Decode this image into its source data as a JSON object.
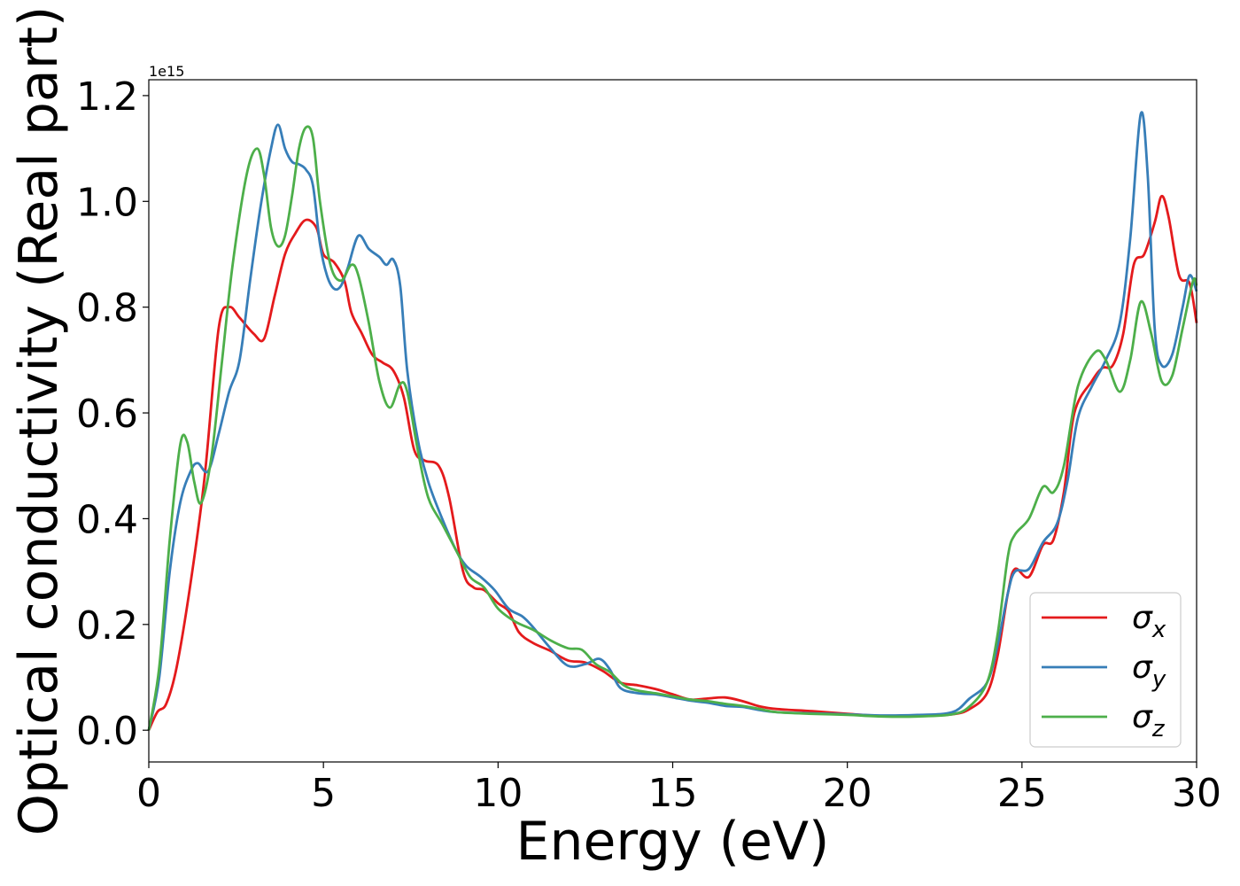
{
  "chart_data": {
    "type": "line",
    "xlabel": "Energy (eV)",
    "ylabel": "Optical conductivity (Real part)",
    "y_offset_text": "1e15",
    "xlim": [
      0,
      30
    ],
    "ylim": [
      -0.06,
      1.23
    ],
    "x_ticks": [
      0,
      5,
      10,
      15,
      20,
      25,
      30
    ],
    "x_tick_labels": [
      "0",
      "5",
      "10",
      "15",
      "20",
      "25",
      "30"
    ],
    "y_ticks": [
      0.0,
      0.2,
      0.4,
      0.6,
      0.8,
      1.0,
      1.2
    ],
    "y_tick_labels": [
      "0.0",
      "0.2",
      "0.4",
      "0.6",
      "0.8",
      "1.0",
      "1.2"
    ],
    "grid": false,
    "legend_position": "bottom-right",
    "series": [
      {
        "name": "σx",
        "base": "σ",
        "sub": "x",
        "color": "#e41a1c",
        "points": [
          [
            0,
            0
          ],
          [
            0.25,
            0.035
          ],
          [
            0.5,
            0.05
          ],
          [
            0.8,
            0.12
          ],
          [
            1.2,
            0.28
          ],
          [
            1.6,
            0.48
          ],
          [
            2.0,
            0.76
          ],
          [
            2.3,
            0.8
          ],
          [
            2.6,
            0.78
          ],
          [
            3.0,
            0.75
          ],
          [
            3.3,
            0.74
          ],
          [
            3.6,
            0.82
          ],
          [
            3.9,
            0.9
          ],
          [
            4.2,
            0.94
          ],
          [
            4.5,
            0.965
          ],
          [
            4.8,
            0.95
          ],
          [
            5.0,
            0.9
          ],
          [
            5.3,
            0.885
          ],
          [
            5.6,
            0.85
          ],
          [
            5.8,
            0.79
          ],
          [
            6.1,
            0.75
          ],
          [
            6.4,
            0.71
          ],
          [
            6.7,
            0.695
          ],
          [
            7.0,
            0.68
          ],
          [
            7.3,
            0.63
          ],
          [
            7.6,
            0.53
          ],
          [
            7.9,
            0.51
          ],
          [
            8.3,
            0.5
          ],
          [
            8.6,
            0.44
          ],
          [
            9.0,
            0.3
          ],
          [
            9.3,
            0.27
          ],
          [
            9.6,
            0.265
          ],
          [
            10.0,
            0.24
          ],
          [
            10.3,
            0.225
          ],
          [
            10.6,
            0.185
          ],
          [
            11.0,
            0.165
          ],
          [
            11.5,
            0.15
          ],
          [
            12.0,
            0.132
          ],
          [
            12.5,
            0.128
          ],
          [
            13.0,
            0.112
          ],
          [
            13.5,
            0.09
          ],
          [
            14.0,
            0.085
          ],
          [
            14.5,
            0.078
          ],
          [
            15.0,
            0.068
          ],
          [
            15.5,
            0.058
          ],
          [
            16.0,
            0.06
          ],
          [
            16.5,
            0.062
          ],
          [
            17.0,
            0.055
          ],
          [
            17.5,
            0.045
          ],
          [
            18.0,
            0.04
          ],
          [
            19.0,
            0.036
          ],
          [
            20.0,
            0.031
          ],
          [
            21.0,
            0.027
          ],
          [
            22.0,
            0.027
          ],
          [
            23.0,
            0.03
          ],
          [
            23.5,
            0.04
          ],
          [
            24.0,
            0.07
          ],
          [
            24.3,
            0.14
          ],
          [
            24.6,
            0.26
          ],
          [
            24.8,
            0.305
          ],
          [
            25.2,
            0.29
          ],
          [
            25.6,
            0.35
          ],
          [
            25.9,
            0.36
          ],
          [
            26.2,
            0.45
          ],
          [
            26.5,
            0.6
          ],
          [
            27.0,
            0.66
          ],
          [
            27.3,
            0.685
          ],
          [
            27.6,
            0.69
          ],
          [
            27.9,
            0.75
          ],
          [
            28.2,
            0.88
          ],
          [
            28.5,
            0.9
          ],
          [
            28.8,
            0.96
          ],
          [
            29.0,
            1.01
          ],
          [
            29.2,
            0.97
          ],
          [
            29.5,
            0.86
          ],
          [
            29.8,
            0.845
          ],
          [
            30.0,
            0.77
          ]
        ]
      },
      {
        "name": "σy",
        "base": "σ",
        "sub": "y",
        "color": "#377eb8",
        "points": [
          [
            0,
            0
          ],
          [
            0.3,
            0.1
          ],
          [
            0.6,
            0.3
          ],
          [
            0.9,
            0.43
          ],
          [
            1.2,
            0.49
          ],
          [
            1.4,
            0.505
          ],
          [
            1.7,
            0.49
          ],
          [
            2.0,
            0.56
          ],
          [
            2.3,
            0.64
          ],
          [
            2.6,
            0.7
          ],
          [
            2.9,
            0.85
          ],
          [
            3.2,
            0.99
          ],
          [
            3.5,
            1.1
          ],
          [
            3.7,
            1.145
          ],
          [
            3.9,
            1.1
          ],
          [
            4.1,
            1.075
          ],
          [
            4.3,
            1.07
          ],
          [
            4.5,
            1.06
          ],
          [
            4.7,
            1.03
          ],
          [
            4.9,
            0.92
          ],
          [
            5.1,
            0.86
          ],
          [
            5.3,
            0.835
          ],
          [
            5.5,
            0.84
          ],
          [
            5.7,
            0.875
          ],
          [
            6.0,
            0.935
          ],
          [
            6.3,
            0.91
          ],
          [
            6.6,
            0.895
          ],
          [
            6.8,
            0.88
          ],
          [
            7.0,
            0.89
          ],
          [
            7.2,
            0.84
          ],
          [
            7.4,
            0.68
          ],
          [
            7.7,
            0.55
          ],
          [
            8.0,
            0.47
          ],
          [
            8.4,
            0.4
          ],
          [
            8.8,
            0.34
          ],
          [
            9.1,
            0.31
          ],
          [
            9.5,
            0.29
          ],
          [
            9.9,
            0.265
          ],
          [
            10.3,
            0.23
          ],
          [
            10.7,
            0.215
          ],
          [
            11.0,
            0.195
          ],
          [
            11.5,
            0.155
          ],
          [
            12.0,
            0.122
          ],
          [
            12.5,
            0.125
          ],
          [
            12.9,
            0.135
          ],
          [
            13.2,
            0.115
          ],
          [
            13.5,
            0.08
          ],
          [
            14.0,
            0.07
          ],
          [
            14.5,
            0.068
          ],
          [
            15.0,
            0.062
          ],
          [
            15.5,
            0.056
          ],
          [
            16.0,
            0.052
          ],
          [
            16.5,
            0.046
          ],
          [
            17.0,
            0.044
          ],
          [
            17.5,
            0.038
          ],
          [
            18.0,
            0.034
          ],
          [
            19.0,
            0.032
          ],
          [
            20.0,
            0.03
          ],
          [
            21.0,
            0.028
          ],
          [
            22.0,
            0.029
          ],
          [
            23.0,
            0.034
          ],
          [
            23.5,
            0.06
          ],
          [
            24.0,
            0.09
          ],
          [
            24.3,
            0.16
          ],
          [
            24.6,
            0.26
          ],
          [
            24.8,
            0.3
          ],
          [
            25.2,
            0.305
          ],
          [
            25.6,
            0.355
          ],
          [
            26.0,
            0.39
          ],
          [
            26.3,
            0.47
          ],
          [
            26.6,
            0.59
          ],
          [
            27.0,
            0.65
          ],
          [
            27.4,
            0.7
          ],
          [
            27.8,
            0.77
          ],
          [
            28.1,
            0.93
          ],
          [
            28.4,
            1.165
          ],
          [
            28.6,
            1.05
          ],
          [
            28.8,
            0.76
          ],
          [
            29.0,
            0.69
          ],
          [
            29.3,
            0.71
          ],
          [
            29.6,
            0.8
          ],
          [
            29.8,
            0.86
          ],
          [
            30.0,
            0.83
          ]
        ]
      },
      {
        "name": "σz",
        "base": "σ",
        "sub": "z",
        "color": "#4daf4a",
        "points": [
          [
            0,
            0
          ],
          [
            0.3,
            0.12
          ],
          [
            0.6,
            0.36
          ],
          [
            0.9,
            0.54
          ],
          [
            1.1,
            0.545
          ],
          [
            1.3,
            0.47
          ],
          [
            1.5,
            0.43
          ],
          [
            1.8,
            0.52
          ],
          [
            2.1,
            0.7
          ],
          [
            2.4,
            0.88
          ],
          [
            2.8,
            1.05
          ],
          [
            3.1,
            1.1
          ],
          [
            3.3,
            1.05
          ],
          [
            3.5,
            0.95
          ],
          [
            3.7,
            0.915
          ],
          [
            3.9,
            0.935
          ],
          [
            4.1,
            1.01
          ],
          [
            4.3,
            1.1
          ],
          [
            4.5,
            1.14
          ],
          [
            4.7,
            1.12
          ],
          [
            4.9,
            1.0
          ],
          [
            5.2,
            0.88
          ],
          [
            5.5,
            0.85
          ],
          [
            5.8,
            0.88
          ],
          [
            6.0,
            0.86
          ],
          [
            6.3,
            0.77
          ],
          [
            6.6,
            0.66
          ],
          [
            6.9,
            0.61
          ],
          [
            7.2,
            0.655
          ],
          [
            7.4,
            0.64
          ],
          [
            7.7,
            0.53
          ],
          [
            8.0,
            0.44
          ],
          [
            8.4,
            0.39
          ],
          [
            8.8,
            0.34
          ],
          [
            9.2,
            0.29
          ],
          [
            9.6,
            0.27
          ],
          [
            10.0,
            0.23
          ],
          [
            10.5,
            0.205
          ],
          [
            11.0,
            0.19
          ],
          [
            11.5,
            0.17
          ],
          [
            12.0,
            0.155
          ],
          [
            12.4,
            0.152
          ],
          [
            12.8,
            0.125
          ],
          [
            13.2,
            0.11
          ],
          [
            13.6,
            0.085
          ],
          [
            14.0,
            0.075
          ],
          [
            14.5,
            0.07
          ],
          [
            15.0,
            0.064
          ],
          [
            15.5,
            0.058
          ],
          [
            16.0,
            0.055
          ],
          [
            16.5,
            0.05
          ],
          [
            17.0,
            0.046
          ],
          [
            17.5,
            0.04
          ],
          [
            18.0,
            0.034
          ],
          [
            19.0,
            0.031
          ],
          [
            20.0,
            0.029
          ],
          [
            21.0,
            0.026
          ],
          [
            22.0,
            0.026
          ],
          [
            23.0,
            0.03
          ],
          [
            23.5,
            0.045
          ],
          [
            24.0,
            0.09
          ],
          [
            24.3,
            0.18
          ],
          [
            24.6,
            0.33
          ],
          [
            24.8,
            0.37
          ],
          [
            25.2,
            0.4
          ],
          [
            25.6,
            0.46
          ],
          [
            25.9,
            0.45
          ],
          [
            26.2,
            0.5
          ],
          [
            26.6,
            0.65
          ],
          [
            27.1,
            0.715
          ],
          [
            27.4,
            0.7
          ],
          [
            27.8,
            0.64
          ],
          [
            28.1,
            0.7
          ],
          [
            28.4,
            0.81
          ],
          [
            28.7,
            0.75
          ],
          [
            29.0,
            0.66
          ],
          [
            29.3,
            0.67
          ],
          [
            29.6,
            0.76
          ],
          [
            29.9,
            0.85
          ],
          [
            30.0,
            0.84
          ]
        ]
      }
    ]
  }
}
